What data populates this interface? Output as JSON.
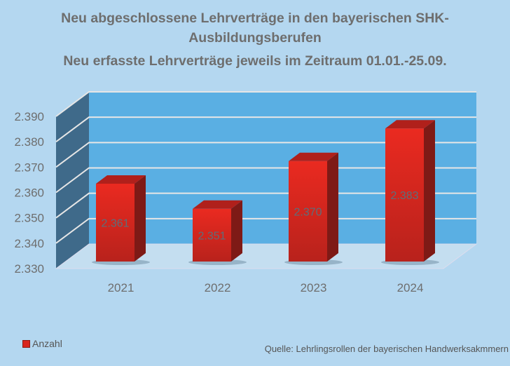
{
  "chart_data": {
    "type": "bar",
    "style": "3d-column",
    "title_lines": [
      "Neu abgeschlossene Lehrverträge in den bayerischen SHK-",
      "Ausbildungsberufen",
      "Neu erfasste Lehrverträge jeweils im Zeitraum 01.01.-25.09."
    ],
    "categories": [
      "2021",
      "2022",
      "2023",
      "2024"
    ],
    "series": [
      {
        "name": "Anzahl",
        "values": [
          2361,
          2351,
          2370,
          2383
        ],
        "labels": [
          "2.361",
          "2.351",
          "2.370",
          "2.383"
        ],
        "color": "#e02a22"
      }
    ],
    "ylim": [
      2330,
      2390
    ],
    "yticks": [
      2330,
      2340,
      2350,
      2360,
      2370,
      2380,
      2390
    ],
    "ytick_labels": [
      "2.330",
      "2.340",
      "2.350",
      "2.360",
      "2.370",
      "2.380",
      "2.390"
    ],
    "grid": true,
    "legend": "bottom-left",
    "source": "Quelle: Lehrlingsrollen der bayerischen Handwerksakmmern",
    "colors": {
      "background": "#b4d7f0",
      "back_wall": "#5aafe3",
      "side_wall": "#3f6a8a",
      "floor": "#c4def0",
      "title": "#6e6e6e"
    }
  }
}
